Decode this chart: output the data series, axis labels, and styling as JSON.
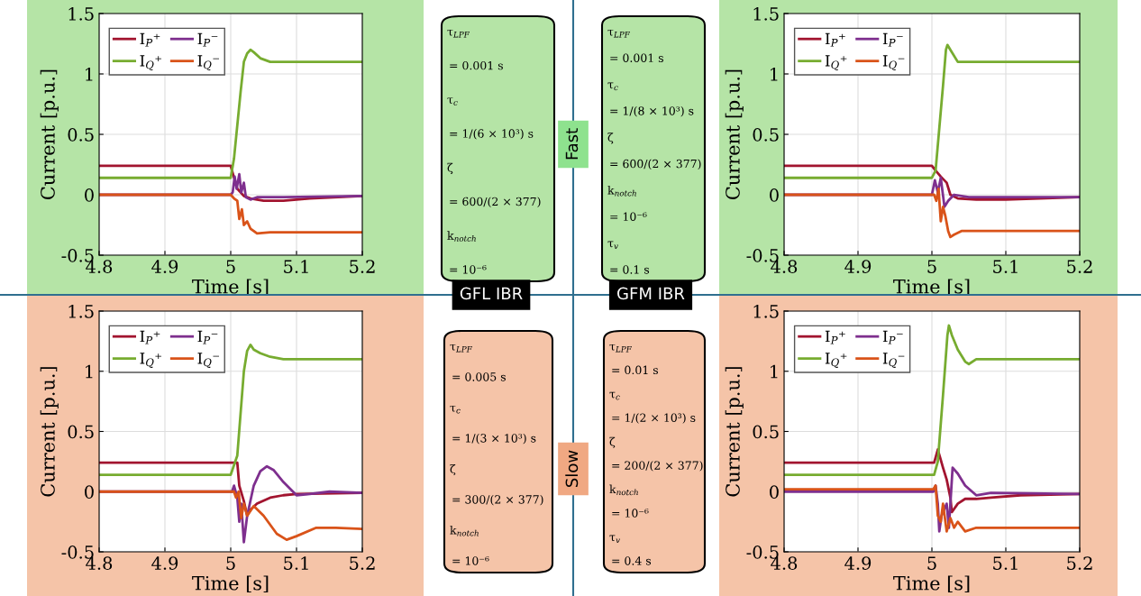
{
  "chart_data": [
    {
      "type": "line",
      "xlabel": "Time [s]",
      "ylabel": "Current [p.u.]",
      "xlim": [
        4.8,
        5.2
      ],
      "ylim": [
        -0.5,
        1.5
      ],
      "xticks": [
        4.8,
        4.9,
        5,
        5.1,
        5.2
      ],
      "yticks": [
        -0.5,
        0,
        0.5,
        1,
        1.5
      ],
      "grid": true,
      "legend": "top left",
      "series": [
        {
          "name": "I$_{P}$⁺",
          "color": "#a2142f",
          "x": [
            4.8,
            5.0,
            5.003,
            5.01,
            5.02,
            5.03,
            5.05,
            5.08,
            5.12,
            5.2
          ],
          "values": [
            0.24,
            0.24,
            0.18,
            0.05,
            -0.01,
            -0.03,
            -0.05,
            -0.05,
            -0.03,
            -0.01
          ]
        },
        {
          "name": "I$_{Q}$⁺",
          "color": "#77ac30",
          "x": [
            4.8,
            5.0,
            5.005,
            5.015,
            5.02,
            5.025,
            5.03,
            5.035,
            5.045,
            5.06,
            5.2
          ],
          "values": [
            0.14,
            0.14,
            0.3,
            0.85,
            1.1,
            1.17,
            1.2,
            1.18,
            1.13,
            1.1,
            1.1
          ]
        },
        {
          "name": "I$_{P}$⁻",
          "color": "#7e2f8e",
          "x": [
            4.8,
            5.0,
            5.003,
            5.006,
            5.009,
            5.013,
            5.016,
            5.02,
            5.023,
            5.03,
            5.04,
            5.08,
            5.2
          ],
          "values": [
            0,
            0,
            0.02,
            0.15,
            0.05,
            0.17,
            0.02,
            0.1,
            -0.02,
            -0.04,
            -0.02,
            -0.02,
            -0.01
          ]
        },
        {
          "name": "I$_{Q}$⁻",
          "color": "#d95319",
          "x": [
            4.8,
            5.0,
            5.005,
            5.01,
            5.013,
            5.017,
            5.02,
            5.025,
            5.03,
            5.04,
            5.06,
            5.2
          ],
          "values": [
            0,
            0,
            -0.03,
            -0.05,
            -0.2,
            -0.12,
            -0.25,
            -0.22,
            -0.28,
            -0.32,
            -0.31,
            -0.31
          ]
        }
      ]
    },
    {
      "type": "line",
      "xlabel": "Time [s]",
      "ylabel": "Current [p.u.]",
      "xlim": [
        4.8,
        5.2
      ],
      "ylim": [
        -0.5,
        1.5
      ],
      "xticks": [
        4.8,
        4.9,
        5,
        5.1,
        5.2
      ],
      "yticks": [
        -0.5,
        0,
        0.5,
        1,
        1.5
      ],
      "grid": true,
      "legend": "top left",
      "series": [
        {
          "name": "I$_{P}$⁺",
          "color": "#a2142f",
          "x": [
            4.8,
            5.0,
            5.005,
            5.012,
            5.02,
            5.025,
            5.035,
            5.06,
            5.1,
            5.2
          ],
          "values": [
            0.24,
            0.24,
            0.2,
            0.15,
            0.1,
            0.0,
            -0.03,
            -0.04,
            -0.04,
            -0.02
          ]
        },
        {
          "name": "I$_{Q}$⁺",
          "color": "#77ac30",
          "x": [
            4.8,
            5.0,
            5.005,
            5.015,
            5.019,
            5.021,
            5.025,
            5.035,
            5.2
          ],
          "values": [
            0.14,
            0.14,
            0.2,
            0.9,
            1.2,
            1.24,
            1.2,
            1.1,
            1.1
          ]
        },
        {
          "name": "I$_{P}$⁻",
          "color": "#7e2f8e",
          "x": [
            4.8,
            5.0,
            5.004,
            5.008,
            5.012,
            5.017,
            5.022,
            5.03,
            5.05,
            5.2
          ],
          "values": [
            0,
            0,
            0.12,
            0.02,
            0.14,
            -0.1,
            -0.05,
            0.0,
            -0.02,
            -0.02
          ]
        },
        {
          "name": "I$_{Q}$⁻",
          "color": "#d95319",
          "x": [
            4.8,
            5.003,
            5.006,
            5.009,
            5.012,
            5.015,
            5.018,
            5.022,
            5.025,
            5.03,
            5.04,
            5.2
          ],
          "values": [
            0,
            0,
            -0.05,
            0.05,
            -0.22,
            -0.1,
            -0.17,
            -0.3,
            -0.35,
            -0.33,
            -0.3,
            -0.3
          ]
        }
      ]
    },
    {
      "type": "line",
      "xlabel": "Time [s]",
      "ylabel": "Current [p.u.]",
      "xlim": [
        4.8,
        5.2
      ],
      "ylim": [
        -0.5,
        1.5
      ],
      "xticks": [
        4.8,
        4.9,
        5,
        5.1,
        5.2
      ],
      "yticks": [
        -0.5,
        0,
        0.5,
        1,
        1.5
      ],
      "grid": true,
      "legend": "top left",
      "series": [
        {
          "name": "I$_{P}$⁺",
          "color": "#a2142f",
          "x": [
            4.8,
            5.01,
            5.013,
            5.02,
            5.025,
            5.03,
            5.04,
            5.06,
            5.08,
            5.1,
            5.2
          ],
          "values": [
            0.24,
            0.24,
            0.05,
            -0.08,
            -0.2,
            -0.15,
            -0.1,
            -0.05,
            -0.03,
            -0.02,
            -0.01
          ]
        },
        {
          "name": "I$_{Q}$⁺",
          "color": "#77ac30",
          "x": [
            4.8,
            5.0,
            5.01,
            5.02,
            5.025,
            5.03,
            5.035,
            5.045,
            5.06,
            5.08,
            5.2
          ],
          "values": [
            0.14,
            0.14,
            0.3,
            1.0,
            1.17,
            1.22,
            1.18,
            1.15,
            1.12,
            1.1,
            1.1
          ]
        },
        {
          "name": "I$_{P}$⁻",
          "color": "#7e2f8e",
          "x": [
            4.8,
            5.002,
            5.005,
            5.01,
            5.013,
            5.016,
            5.02,
            5.025,
            5.035,
            5.045,
            5.055,
            5.065,
            5.08,
            5.1,
            5.12,
            5.15,
            5.2
          ],
          "values": [
            0,
            0,
            0.05,
            -0.05,
            -0.25,
            -0.1,
            -0.42,
            -0.2,
            0.05,
            0.17,
            0.21,
            0.18,
            0.08,
            -0.03,
            -0.02,
            0.0,
            -0.01
          ]
        },
        {
          "name": "I$_{Q}$⁻",
          "color": "#d95319",
          "x": [
            4.8,
            5.005,
            5.008,
            5.012,
            5.016,
            5.02,
            5.025,
            5.035,
            5.05,
            5.07,
            5.085,
            5.1,
            5.13,
            5.16,
            5.2
          ],
          "values": [
            0,
            0,
            -0.05,
            0.0,
            -0.22,
            -0.1,
            -0.2,
            -0.12,
            -0.2,
            -0.35,
            -0.4,
            -0.37,
            -0.3,
            -0.3,
            -0.31
          ]
        }
      ]
    },
    {
      "type": "line",
      "xlabel": "Time [s]",
      "ylabel": "Current [p.u.]",
      "xlim": [
        4.8,
        5.2
      ],
      "ylim": [
        -0.5,
        1.5
      ],
      "xticks": [
        4.8,
        4.9,
        5,
        5.1,
        5.2
      ],
      "yticks": [
        -0.5,
        0,
        0.5,
        1,
        1.5
      ],
      "grid": true,
      "legend": "top left",
      "series": [
        {
          "name": "I$_{P}$⁺",
          "color": "#a2142f",
          "x": [
            4.8,
            5.003,
            5.008,
            5.015,
            5.02,
            5.025,
            5.027,
            5.035,
            5.045,
            5.06,
            5.08,
            5.12,
            5.2
          ],
          "values": [
            0.24,
            0.24,
            0.35,
            0.2,
            0.1,
            -0.05,
            -0.17,
            -0.1,
            -0.06,
            -0.06,
            -0.05,
            -0.03,
            -0.02
          ]
        },
        {
          "name": "I$_{Q}$⁺",
          "color": "#77ac30",
          "x": [
            4.8,
            5.003,
            5.008,
            5.015,
            5.021,
            5.023,
            5.027,
            5.035,
            5.045,
            5.05,
            5.06,
            5.2
          ],
          "values": [
            0.14,
            0.14,
            0.25,
            0.8,
            1.3,
            1.38,
            1.3,
            1.18,
            1.08,
            1.06,
            1.1,
            1.1
          ]
        },
        {
          "name": "I$_{P}$⁻",
          "color": "#7e2f8e",
          "x": [
            4.8,
            5.002,
            5.005,
            5.008,
            5.01,
            5.013,
            5.02,
            5.023,
            5.028,
            5.035,
            5.045,
            5.06,
            5.08,
            5.2
          ],
          "values": [
            0,
            0,
            0.05,
            -0.1,
            -0.33,
            -0.2,
            -0.1,
            -0.3,
            0.2,
            0.15,
            0.05,
            -0.03,
            -0.01,
            -0.02
          ]
        },
        {
          "name": "I$_{Q}$⁻",
          "color": "#d95319",
          "x": [
            4.8,
            5.002,
            5.005,
            5.008,
            5.012,
            5.015,
            5.02,
            5.025,
            5.03,
            5.035,
            5.045,
            5.06,
            5.2
          ],
          "values": [
            0.02,
            0.02,
            0.05,
            -0.2,
            -0.25,
            -0.1,
            -0.33,
            -0.22,
            -0.3,
            -0.25,
            -0.33,
            -0.3,
            -0.3
          ]
        }
      ]
    },
    {
      "type": "other",
      "annotations": [
        "τ$_{LPF}$",
        "= 0.001 s",
        "τ$_{c}$",
        "= 1/(6 × 10³) s",
        "ζ",
        "= 600/(2 × 377)",
        "k$_{notch}$",
        "= 10⁻⁶"
      ]
    },
    {
      "type": "other",
      "annotations": [
        "τ$_{LPF}$",
        "= 0.001 s",
        "τ$_{c}$",
        "= 1/(8 × 10³) s",
        "ζ",
        "= 600/(2 × 377)",
        "k$_{notch}$",
        "= 10⁻⁶",
        "τ$_{v}$",
        "= 0.1 s"
      ]
    },
    {
      "type": "other",
      "annotations": [
        "τ$_{LPF}$",
        "= 0.005 s",
        "τ$_{c}$",
        "= 1/(3 × 10³) s",
        "ζ",
        "= 300/(2 × 377)",
        "k$_{notch}$",
        "= 10⁻⁶"
      ]
    },
    {
      "type": "other",
      "annotations": [
        "τ$_{LPF}$",
        "= 0.01 s",
        "τ$_{c}$",
        "= 1/(2 × 10³) s",
        "ζ",
        "= 200/(2 × 377)",
        "k$_{notch}$",
        "= 10⁻⁶",
        "τ$_{v}$",
        "= 0.4 s"
      ]
    },
    {
      "type": "other",
      "annotations": [
        "Fast",
        "Slow",
        "GFL IBR",
        "GFM IBR"
      ]
    }
  ]
}
